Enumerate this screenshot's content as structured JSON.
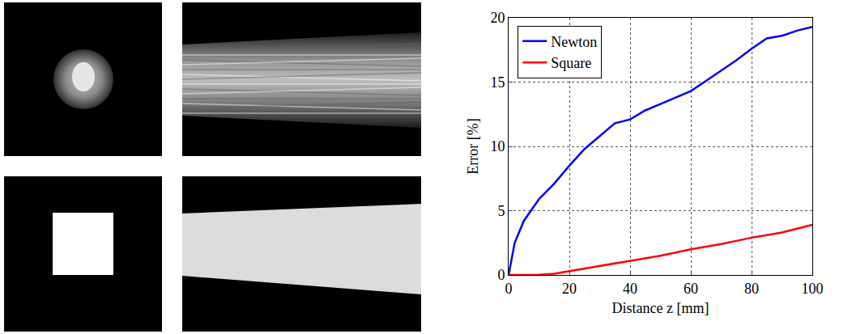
{
  "chart_data": {
    "type": "line",
    "x_label": "Distance z [mm]",
    "y_label": "Error [%]",
    "x": [
      0,
      2,
      5,
      10,
      15,
      20,
      25,
      30,
      35,
      40,
      45,
      50,
      55,
      60,
      65,
      70,
      75,
      80,
      85,
      90,
      95,
      100
    ],
    "series": [
      {
        "name": "Newton",
        "color": "#0000ff",
        "values": [
          0,
          2.5,
          4.2,
          5.9,
          7.1,
          8.5,
          9.8,
          10.8,
          11.8,
          12.1,
          12.8,
          13.3,
          13.8,
          14.3,
          15.1,
          15.9,
          16.7,
          17.6,
          18.4,
          18.6,
          19,
          19.3
        ]
      },
      {
        "name": "Square",
        "color": "#ff0000",
        "values": [
          0,
          0,
          0,
          0.02,
          0.1,
          0.3,
          0.5,
          0.7,
          0.9,
          1.1,
          1.3,
          1.5,
          1.75,
          2.0,
          2.2,
          2.4,
          2.65,
          2.9,
          3.1,
          3.3,
          3.6,
          3.9
        ]
      }
    ],
    "xlim": [
      0,
      100
    ],
    "xticks": [
      0,
      20,
      40,
      60,
      80,
      100
    ],
    "ylim": [
      0,
      20
    ],
    "yticks": [
      0,
      5,
      10,
      15,
      20
    ],
    "grid": true,
    "legend": "upper left"
  }
}
